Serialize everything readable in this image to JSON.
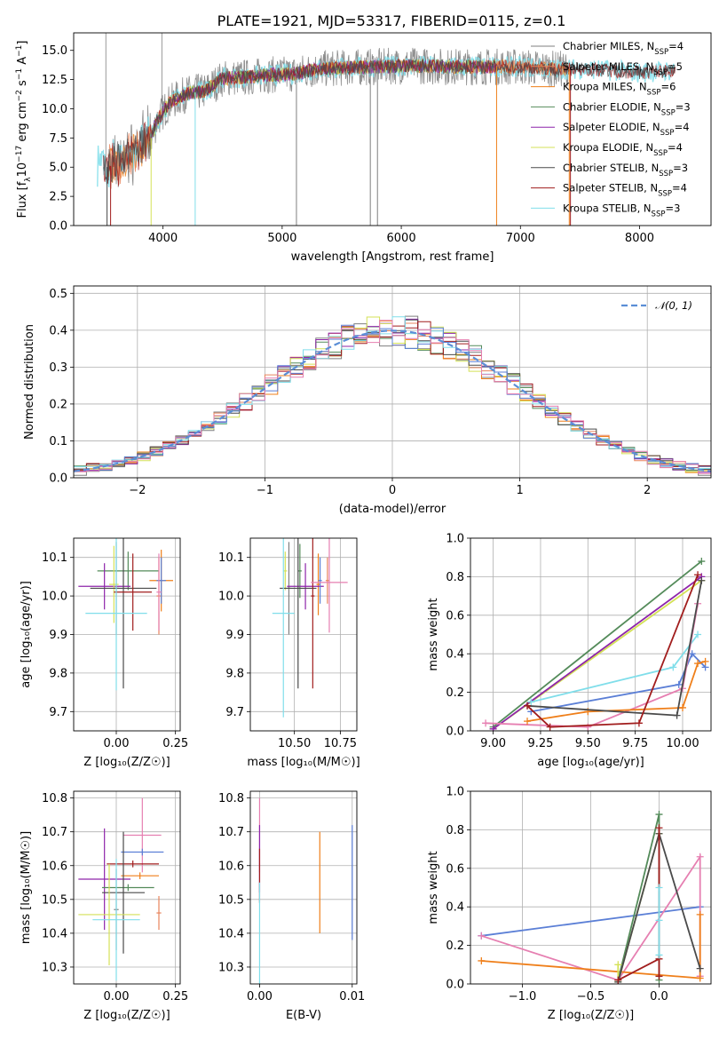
{
  "figure_title": "PLATE=1921, MJD=53317, FIBERID=0115, z=0.1",
  "colors": {
    "chabrier_miles": "#7f7f7f",
    "salpeter_miles": "#e8845c",
    "kroupa_miles": "#ef7f1a",
    "chabrier_elodie": "#548b5a",
    "salpeter_elodie": "#8e24aa",
    "kroupa_elodie": "#d4e157",
    "chabrier_stelib": "#4a4a4a",
    "salpeter_stelib": "#a11d1d",
    "kroupa_stelib": "#80deea",
    "blue": "#5b7fd6",
    "pink": "#e67fb1",
    "gaussian": "#5b8ed6"
  },
  "chart_data": [
    {
      "id": "spectrum",
      "type": "line",
      "title": "PLATE=1921, MJD=53317, FIBERID=0115, z=0.1",
      "xlabel": "wavelength [Angstrom, rest frame]",
      "ylabel": "Flux [f$_\\lambda$10$^{-17}$ erg cm$^{-2}$ s$^{-1}$ A$^{-1}$]",
      "ylabel_parts": [
        "Flux [f",
        "λ",
        "10",
        "−17",
        " erg cm",
        "−2",
        " s",
        "−1",
        " A",
        "−1",
        "]"
      ],
      "xlim": [
        3250,
        8600
      ],
      "ylim": [
        0,
        16.5
      ],
      "xticks": [
        "4000",
        "5000",
        "6000",
        "7000",
        "8000"
      ],
      "xtick_values": [
        4000,
        5000,
        6000,
        7000,
        8000
      ],
      "yticks": [
        "0.0",
        "2.5",
        "5.0",
        "7.5",
        "10.0",
        "12.5",
        "15.0"
      ],
      "ytick_values": [
        0,
        2.5,
        5,
        7.5,
        10,
        12.5,
        15
      ],
      "spectrum_anchors": {
        "x": [
          3450,
          3600,
          3750,
          3900,
          3950,
          4050,
          4200,
          4350,
          4500,
          4700,
          4900,
          5100,
          5300,
          5500,
          5800,
          6100,
          6400,
          6700,
          7000,
          7300,
          7600,
          8000,
          8300
        ],
        "y": [
          4.8,
          5.2,
          6.3,
          7.5,
          9.0,
          10.5,
          11.3,
          11.5,
          12.6,
          12.7,
          12.9,
          13.0,
          13.4,
          13.5,
          13.6,
          13.7,
          13.6,
          13.6,
          13.6,
          13.4,
          13.4,
          13.1,
          13.3
        ]
      },
      "legend": [
        {
          "label_main": "Chabrier MILES, N",
          "label_sub": "SSP",
          "label_end": "=4",
          "color_key": "chabrier_miles"
        },
        {
          "label_main": "Salpeter MILES, N",
          "label_sub": "SSP",
          "label_end": "=5",
          "color_key": "salpeter_miles"
        },
        {
          "label_main": "Kroupa MILES, N",
          "label_sub": "SSP",
          "label_end": "=6",
          "color_key": "kroupa_miles"
        },
        {
          "label_main": "Chabrier ELODIE, N",
          "label_sub": "SSP",
          "label_end": "=3",
          "color_key": "chabrier_elodie"
        },
        {
          "label_main": "Salpeter ELODIE, N",
          "label_sub": "SSP",
          "label_end": "=4",
          "color_key": "salpeter_elodie"
        },
        {
          "label_main": "Kroupa ELODIE, N",
          "label_sub": "SSP",
          "label_end": "=4",
          "color_key": "kroupa_elodie"
        },
        {
          "label_main": "Chabrier STELIB, N",
          "label_sub": "SSP",
          "label_end": "=3",
          "color_key": "chabrier_stelib"
        },
        {
          "label_main": "Salpeter STELIB, N",
          "label_sub": "SSP",
          "label_end": "=4",
          "color_key": "salpeter_stelib"
        },
        {
          "label_main": "Kroupa STELIB, N",
          "label_sub": "SSP",
          "label_end": "=3",
          "color_key": "kroupa_stelib"
        }
      ],
      "legend_position": "right",
      "grid": false
    },
    {
      "id": "residuals",
      "type": "line",
      "xlabel": "(data-model)/error",
      "ylabel": "Normed distribution",
      "xlim": [
        -2.5,
        2.5
      ],
      "ylim": [
        0,
        0.52
      ],
      "xticks": [
        "−2",
        "−1",
        "0",
        "1",
        "2"
      ],
      "xtick_values": [
        -2,
        -1,
        0,
        1,
        2
      ],
      "yticks": [
        "0.0",
        "0.1",
        "0.2",
        "0.3",
        "0.4",
        "0.5"
      ],
      "ytick_values": [
        0,
        0.1,
        0.2,
        0.3,
        0.4,
        0.5
      ],
      "bin_width": 0.1,
      "legend": [
        {
          "label": "𝒩(0, 1)",
          "color_key": "gaussian"
        }
      ],
      "legend_position": "top-right",
      "grid": true
    },
    {
      "id": "age_vs_Z",
      "type": "scatter",
      "xlabel": "Z [log₁₀(Z/Z☉)]",
      "ylabel": "age  [log₁₀(age/yr)]",
      "xlim": [
        -0.18,
        0.27
      ],
      "ylim": [
        9.65,
        10.15
      ],
      "xticks": [
        "0.00",
        "0.25"
      ],
      "xtick_values": [
        0,
        0.25
      ],
      "yticks": [
        "9.7",
        "9.8",
        "9.9",
        "10.0",
        "10.1"
      ],
      "ytick_values": [
        9.7,
        9.8,
        9.9,
        10.0,
        10.1
      ],
      "points": [
        {
          "color_key": "chabrier_miles",
          "x": 0.0,
          "xerr": 0.01,
          "y": 10.02,
          "yerr": 0.12
        },
        {
          "color_key": "salpeter_miles",
          "x": 0.18,
          "xerr": 0.01,
          "y": 10.0,
          "yerr": 0.1
        },
        {
          "color_key": "kroupa_miles",
          "x": 0.19,
          "xerr": 0.05,
          "y": 10.04,
          "yerr": 0.08
        },
        {
          "color_key": "chabrier_elodie",
          "x": 0.05,
          "xerr": 0.13,
          "y": 10.065,
          "yerr": 0.05
        },
        {
          "color_key": "salpeter_elodie",
          "x": -0.05,
          "xerr": 0.11,
          "y": 10.025,
          "yerr": 0.06
        },
        {
          "color_key": "kroupa_elodie",
          "x": -0.01,
          "xerr": 0.02,
          "y": 10.03,
          "yerr": 0.1
        },
        {
          "color_key": "chabrier_stelib",
          "x": 0.03,
          "xerr": 0.14,
          "y": 10.02,
          "yerr": 0.26
        },
        {
          "color_key": "salpeter_stelib",
          "x": 0.07,
          "xerr": 0.08,
          "y": 10.01,
          "yerr": 0.1
        },
        {
          "color_key": "kroupa_stelib",
          "x": 0.0,
          "xerr": 0.13,
          "y": 9.955,
          "yerr": 0.2
        },
        {
          "color_key": "blue",
          "x": 0.19,
          "xerr": 0.02,
          "y": 10.04,
          "yerr": 0.06
        },
        {
          "color_key": "pink",
          "x": 0.18,
          "xerr": 0.01,
          "y": 10.01,
          "yerr": 0.1
        }
      ],
      "grid": true
    },
    {
      "id": "age_vs_mass",
      "type": "scatter",
      "xlabel": "mass [log₁₀(M/M☉)]",
      "xlim": [
        10.26,
        10.84
      ],
      "ylim": [
        9.65,
        10.15
      ],
      "xticks": [
        "10.50",
        "10.75"
      ],
      "xtick_values": [
        10.5,
        10.75
      ],
      "yticks": [
        "9.7",
        "9.8",
        "9.9",
        "10.0",
        "10.1"
      ],
      "ytick_values": [
        9.7,
        9.8,
        9.9,
        10.0,
        10.1
      ],
      "points": [
        {
          "color_key": "chabrier_miles",
          "x": 10.47,
          "xerr": 0.01,
          "y": 10.02,
          "yerr": 0.12
        },
        {
          "color_key": "salpeter_miles",
          "x": 10.68,
          "xerr": 0.01,
          "y": 10.04,
          "yerr": 0.06
        },
        {
          "color_key": "kroupa_miles",
          "x": 10.63,
          "xerr": 0.01,
          "y": 10.03,
          "yerr": 0.08
        },
        {
          "color_key": "chabrier_elodie",
          "x": 10.53,
          "xerr": 0.01,
          "y": 10.065,
          "yerr": 0.07
        },
        {
          "color_key": "salpeter_elodie",
          "x": 10.56,
          "xerr": 0.1,
          "y": 10.025,
          "yerr": 0.06
        },
        {
          "color_key": "kroupa_elodie",
          "x": 10.45,
          "xerr": 0.01,
          "y": 10.065,
          "yerr": 0.05
        },
        {
          "color_key": "chabrier_stelib",
          "x": 10.52,
          "xerr": 0.1,
          "y": 10.02,
          "yerr": 0.26
        },
        {
          "color_key": "salpeter_stelib",
          "x": 10.6,
          "xerr": 0.01,
          "y": 10.0,
          "yerr": 0.24
        },
        {
          "color_key": "kroupa_stelib",
          "x": 10.44,
          "xerr": 0.06,
          "y": 9.955,
          "yerr": 0.27
        },
        {
          "color_key": "blue",
          "x": 10.64,
          "xerr": 0.01,
          "y": 10.04,
          "yerr": 0.06
        },
        {
          "color_key": "pink",
          "x": 10.69,
          "xerr": 0.1,
          "y": 10.035,
          "yerr": 0.13
        }
      ],
      "grid": true
    },
    {
      "id": "weight_vs_age",
      "type": "line",
      "xlabel": "age  [log₁₀(age/yr)]",
      "ylabel": "mass weight",
      "xlim": [
        8.88,
        10.15
      ],
      "ylim": [
        0,
        1
      ],
      "xticks": [
        "9.00",
        "9.25",
        "9.50",
        "9.75",
        "10.00"
      ],
      "xtick_values": [
        9,
        9.25,
        9.5,
        9.75,
        10
      ],
      "yticks": [
        "0.0",
        "0.2",
        "0.4",
        "0.6",
        "0.8",
        "1.0"
      ],
      "ytick_values": [
        0,
        0.2,
        0.4,
        0.6,
        0.8,
        1
      ],
      "series": [
        {
          "color_key": "chabrier_elodie",
          "x": [
            9.0,
            10.1
          ],
          "y": [
            0.02,
            0.88
          ]
        },
        {
          "color_key": "kroupa_elodie",
          "x": [
            9.0,
            10.1
          ],
          "y": [
            0.01,
            0.78
          ]
        },
        {
          "color_key": "salpeter_elodie",
          "x": [
            9.0,
            10.1
          ],
          "y": [
            0.01,
            0.8
          ]
        },
        {
          "color_key": "kroupa_stelib",
          "x": [
            9.2,
            9.95,
            10.08
          ],
          "y": [
            0.15,
            0.33,
            0.5
          ]
        },
        {
          "color_key": "blue",
          "x": [
            9.2,
            9.98,
            10.05,
            10.12
          ],
          "y": [
            0.1,
            0.24,
            0.4,
            0.33
          ]
        },
        {
          "color_key": "pink",
          "x": [
            8.96,
            9.5,
            10.0,
            10.08
          ],
          "y": [
            0.04,
            0.02,
            0.22,
            0.66
          ]
        },
        {
          "color_key": "kroupa_miles",
          "x": [
            9.18,
            9.5,
            10.0,
            10.08,
            10.12
          ],
          "y": [
            0.05,
            0.1,
            0.12,
            0.35,
            0.36
          ]
        },
        {
          "color_key": "chabrier_stelib",
          "x": [
            9.18,
            9.97,
            10.1
          ],
          "y": [
            0.13,
            0.08,
            0.78
          ]
        },
        {
          "color_key": "salpeter_stelib",
          "x": [
            9.18,
            9.3,
            9.77,
            10.08
          ],
          "y": [
            0.13,
            0.02,
            0.04,
            0.81
          ]
        }
      ],
      "grid": true
    },
    {
      "id": "mass_vs_Z",
      "type": "scatter",
      "xlabel": "Z [log₁₀(Z/Z☉)]",
      "ylabel": "mass [log₁₀(M/M☉)]",
      "xlim": [
        -0.18,
        0.27
      ],
      "ylim": [
        10.25,
        10.82
      ],
      "xticks": [
        "0.00",
        "0.25"
      ],
      "xtick_values": [
        0,
        0.25
      ],
      "yticks": [
        "10.3",
        "10.4",
        "10.5",
        "10.6",
        "10.7",
        "10.8"
      ],
      "ytick_values": [
        10.3,
        10.4,
        10.5,
        10.6,
        10.7,
        10.8
      ],
      "points": [
        {
          "color_key": "chabrier_miles",
          "x": 0.0,
          "xerr": 0.01,
          "y": 10.47,
          "yerr": 0.12
        },
        {
          "color_key": "pink",
          "x": 0.11,
          "xerr": 0.08,
          "y": 10.69,
          "yerr": 0.11
        },
        {
          "color_key": "blue",
          "x": 0.11,
          "xerr": 0.09,
          "y": 10.64,
          "yerr": 0.01
        },
        {
          "color_key": "kroupa_miles",
          "x": 0.1,
          "xerr": 0.08,
          "y": 10.57,
          "yerr": 0.01
        },
        {
          "color_key": "salpeter_stelib",
          "x": 0.07,
          "xerr": 0.11,
          "y": 10.605,
          "yerr": 0.01
        },
        {
          "color_key": "salpeter_elodie",
          "x": -0.05,
          "xerr": 0.11,
          "y": 10.56,
          "yerr": 0.15
        },
        {
          "color_key": "chabrier_elodie",
          "x": 0.05,
          "xerr": 0.11,
          "y": 10.535,
          "yerr": 0.01
        },
        {
          "color_key": "chabrier_stelib",
          "x": 0.03,
          "xerr": 0.09,
          "y": 10.52,
          "yerr": 0.18
        },
        {
          "color_key": "kroupa_elodie",
          "x": -0.03,
          "xerr": 0.13,
          "y": 10.455,
          "yerr": 0.15
        },
        {
          "color_key": "kroupa_stelib",
          "x": 0.0,
          "xerr": 0.1,
          "y": 10.44,
          "yerr": 0.18
        },
        {
          "color_key": "salpeter_miles",
          "x": 0.18,
          "xerr": 0.01,
          "y": 10.46,
          "yerr": 0.05
        }
      ],
      "grid": true
    },
    {
      "id": "mass_vs_ebv",
      "type": "scatter",
      "xlabel": "E(B-V)",
      "xlim": [
        -0.001,
        0.0105
      ],
      "ylim": [
        10.25,
        10.82
      ],
      "xticks": [
        "0.00",
        "0.01"
      ],
      "xtick_values": [
        0,
        0.01
      ],
      "yticks": [
        "10.3",
        "10.4",
        "10.5",
        "10.6",
        "10.7",
        "10.8"
      ],
      "ytick_values": [
        10.3,
        10.4,
        10.5,
        10.6,
        10.7,
        10.8
      ],
      "points": [
        {
          "color_key": "pink",
          "x": 0.0,
          "xerr": 0.0,
          "y": 10.69,
          "yerr": 0.11
        },
        {
          "color_key": "salpeter_elodie",
          "x": 0.0,
          "xerr": 0.0,
          "y": 10.62,
          "yerr": 0.1
        },
        {
          "color_key": "salpeter_stelib",
          "x": 0.0,
          "xerr": 0.0,
          "y": 10.57,
          "yerr": 0.08
        },
        {
          "color_key": "kroupa_stelib",
          "x": 0.0,
          "xerr": 0.0,
          "y": 10.4,
          "yerr": 0.15
        },
        {
          "color_key": "kroupa_miles",
          "x": 0.0065,
          "xerr": 0.0,
          "y": 10.55,
          "yerr": 0.15
        },
        {
          "color_key": "blue",
          "x": 0.01,
          "xerr": 0.0,
          "y": 10.55,
          "yerr": 0.17
        }
      ],
      "grid": true
    },
    {
      "id": "weight_vs_Z",
      "type": "line",
      "xlabel": "Z [log₁₀(Z/Z☉)]",
      "ylabel": "mass weight",
      "xlim": [
        -1.38,
        0.38
      ],
      "ylim": [
        0,
        1
      ],
      "xticks": [
        "−1.0",
        "−0.5",
        "0.0"
      ],
      "xtick_values": [
        -1,
        -0.5,
        0
      ],
      "yticks": [
        "0.0",
        "0.2",
        "0.4",
        "0.6",
        "0.8",
        "1.0"
      ],
      "ytick_values": [
        0,
        0.2,
        0.4,
        0.6,
        0.8,
        1
      ],
      "series": [
        {
          "color_key": "blue",
          "x": [
            -1.3,
            0.3
          ],
          "y": [
            0.25,
            0.4
          ]
        },
        {
          "color_key": "pink",
          "x": [
            -1.3,
            -0.3,
            0.3,
            0.3
          ],
          "y": [
            0.25,
            0.02,
            0.66,
            0.04
          ]
        },
        {
          "color_key": "kroupa_miles",
          "x": [
            -1.3,
            0.3,
            0.3
          ],
          "y": [
            0.12,
            0.03,
            0.36
          ]
        },
        {
          "color_key": "chabrier_elodie",
          "x": [
            -0.3,
            0.0,
            0.0
          ],
          "y": [
            0.02,
            0.88,
            0.02
          ]
        },
        {
          "color_key": "kroupa_elodie",
          "x": [
            -0.3,
            -0.3,
            0.0
          ],
          "y": [
            0.1,
            0.01,
            0.78
          ]
        },
        {
          "color_key": "chabrier_stelib",
          "x": [
            -0.3,
            0.0,
            0.3
          ],
          "y": [
            0.01,
            0.78,
            0.08
          ]
        },
        {
          "color_key": "salpeter_stelib",
          "x": [
            -0.3,
            0.0,
            0.0,
            0.0
          ],
          "y": [
            0.02,
            0.13,
            0.81,
            0.04
          ]
        },
        {
          "color_key": "kroupa_stelib",
          "x": [
            0.0,
            0.0,
            0.0
          ],
          "y": [
            0.15,
            0.33,
            0.5
          ]
        }
      ],
      "grid": true
    }
  ]
}
